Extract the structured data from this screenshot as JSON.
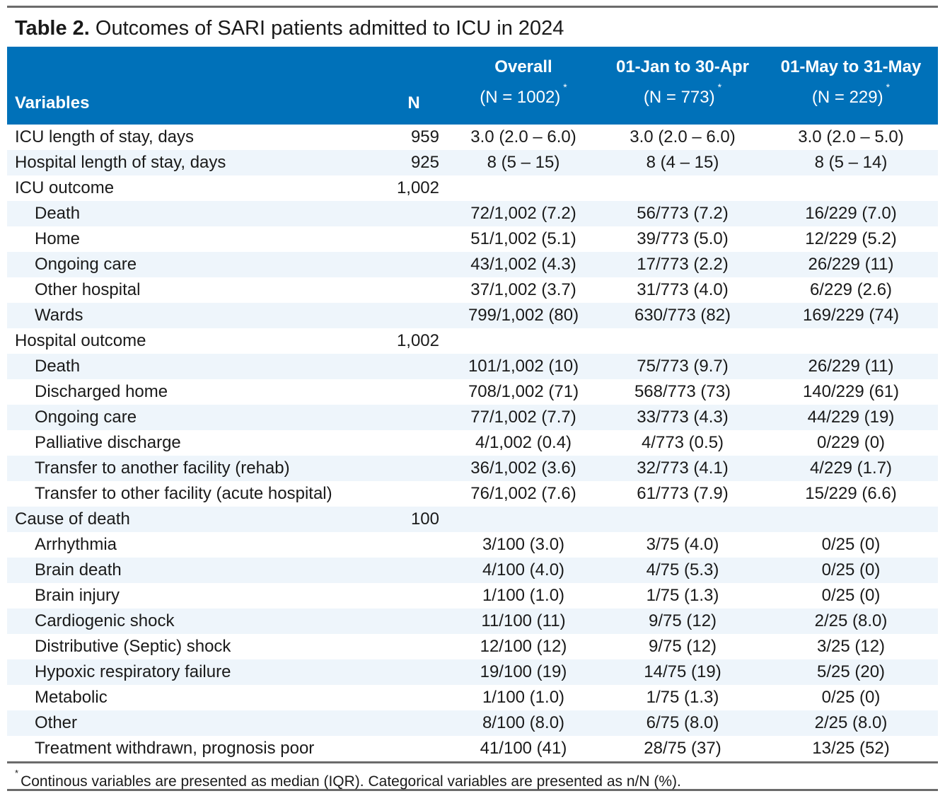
{
  "title": {
    "bold": "Table 2.",
    "text": "Outcomes of SARI patients admitted to ICU in 2024"
  },
  "colors": {
    "header_bg": "#0071b9",
    "stripe": "#eef5fb",
    "rule": "#6b6b6b"
  },
  "header": {
    "variables": "Variables",
    "n": "N",
    "cols": [
      {
        "name": "Overall",
        "sub": "(N = 1002)",
        "mark": "*"
      },
      {
        "name": "01-Jan to 30-Apr",
        "sub": "(N = 773)",
        "mark": "*"
      },
      {
        "name": "01-May to 31-May",
        "sub": "(N = 229)",
        "mark": "*"
      }
    ]
  },
  "rows": [
    {
      "label": "ICU length of stay, days",
      "sub": false,
      "n": "959",
      "v": [
        "3.0 (2.0 – 6.0)",
        "3.0 (2.0 – 6.0)",
        "3.0 (2.0 – 5.0)"
      ]
    },
    {
      "label": "Hospital length of stay, days",
      "sub": false,
      "n": "925",
      "v": [
        "8 (5 – 15)",
        "8 (4 – 15)",
        "8 (5 – 14)"
      ]
    },
    {
      "label": "ICU outcome",
      "sub": false,
      "n": "1,002",
      "v": [
        "",
        "",
        ""
      ]
    },
    {
      "label": "Death",
      "sub": true,
      "n": "",
      "v": [
        "72/1,002 (7.2)",
        "56/773 (7.2)",
        "16/229 (7.0)"
      ]
    },
    {
      "label": "Home",
      "sub": true,
      "n": "",
      "v": [
        "51/1,002 (5.1)",
        "39/773 (5.0)",
        "12/229 (5.2)"
      ]
    },
    {
      "label": "Ongoing care",
      "sub": true,
      "n": "",
      "v": [
        "43/1,002 (4.3)",
        "17/773 (2.2)",
        "26/229 (11)"
      ]
    },
    {
      "label": "Other hospital",
      "sub": true,
      "n": "",
      "v": [
        "37/1,002 (3.7)",
        "31/773 (4.0)",
        "6/229 (2.6)"
      ]
    },
    {
      "label": "Wards",
      "sub": true,
      "n": "",
      "v": [
        "799/1,002 (80)",
        "630/773 (82)",
        "169/229 (74)"
      ]
    },
    {
      "label": "Hospital outcome",
      "sub": false,
      "n": "1,002",
      "v": [
        "",
        "",
        ""
      ]
    },
    {
      "label": "Death",
      "sub": true,
      "n": "",
      "v": [
        "101/1,002 (10)",
        "75/773 (9.7)",
        "26/229 (11)"
      ]
    },
    {
      "label": "Discharged home",
      "sub": true,
      "n": "",
      "v": [
        "708/1,002 (71)",
        "568/773 (73)",
        "140/229 (61)"
      ]
    },
    {
      "label": "Ongoing care",
      "sub": true,
      "n": "",
      "v": [
        "77/1,002 (7.7)",
        "33/773 (4.3)",
        "44/229 (19)"
      ]
    },
    {
      "label": "Palliative discharge",
      "sub": true,
      "n": "",
      "v": [
        "4/1,002 (0.4)",
        "4/773 (0.5)",
        "0/229 (0)"
      ]
    },
    {
      "label": "Transfer to another facility (rehab)",
      "sub": true,
      "n": "",
      "v": [
        "36/1,002 (3.6)",
        "32/773 (4.1)",
        "4/229 (1.7)"
      ]
    },
    {
      "label": "Transfer to other facility (acute hospital)",
      "sub": true,
      "n": "",
      "v": [
        "76/1,002 (7.6)",
        "61/773 (7.9)",
        "15/229 (6.6)"
      ]
    },
    {
      "label": "Cause of death",
      "sub": false,
      "n": "100",
      "v": [
        "",
        "",
        ""
      ]
    },
    {
      "label": "Arrhythmia",
      "sub": true,
      "n": "",
      "v": [
        "3/100 (3.0)",
        "3/75 (4.0)",
        "0/25 (0)"
      ]
    },
    {
      "label": "Brain death",
      "sub": true,
      "n": "",
      "v": [
        "4/100 (4.0)",
        "4/75 (5.3)",
        "0/25 (0)"
      ]
    },
    {
      "label": "Brain injury",
      "sub": true,
      "n": "",
      "v": [
        "1/100 (1.0)",
        "1/75 (1.3)",
        "0/25 (0)"
      ]
    },
    {
      "label": "Cardiogenic shock",
      "sub": true,
      "n": "",
      "v": [
        "11/100 (11)",
        "9/75 (12)",
        "2/25 (8.0)"
      ]
    },
    {
      "label": "Distributive (Septic) shock",
      "sub": true,
      "n": "",
      "v": [
        "12/100 (12)",
        "9/75 (12)",
        "3/25 (12)"
      ]
    },
    {
      "label": "Hypoxic respiratory failure",
      "sub": true,
      "n": "",
      "v": [
        "19/100 (19)",
        "14/75 (19)",
        "5/25 (20)"
      ]
    },
    {
      "label": "Metabolic",
      "sub": true,
      "n": "",
      "v": [
        "1/100 (1.0)",
        "1/75 (1.3)",
        "0/25 (0)"
      ]
    },
    {
      "label": "Other",
      "sub": true,
      "n": "",
      "v": [
        "8/100 (8.0)",
        "6/75 (8.0)",
        "2/25 (8.0)"
      ]
    },
    {
      "label": "Treatment withdrawn, prognosis poor",
      "sub": true,
      "n": "",
      "v": [
        "41/100 (41)",
        "28/75 (37)",
        "13/25 (52)"
      ]
    }
  ],
  "footnote": {
    "mark": "*",
    "text": "Continous variables are presented as median (IQR). Categorical variables are presented as n/N (%)."
  }
}
